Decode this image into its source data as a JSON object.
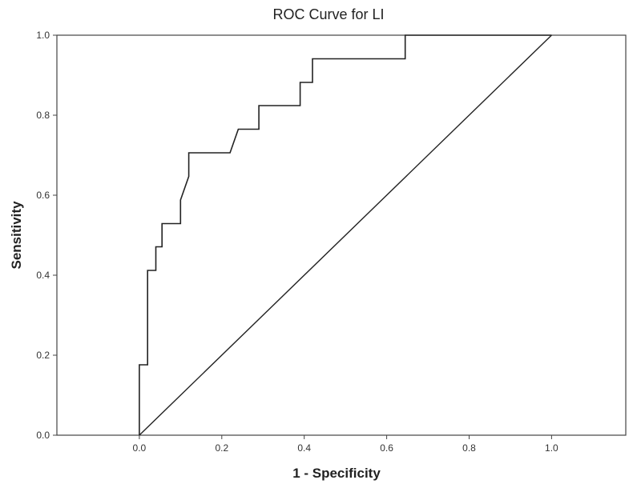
{
  "chart_data": {
    "type": "line",
    "title": "ROC Curve for LI",
    "xlabel": "1 - Specificity",
    "ylabel": "Sensitivity",
    "xlim": [
      -0.2,
      1.18
    ],
    "ylim": [
      0,
      1
    ],
    "x_ticks": [
      "0.0",
      "0.2",
      "0.4",
      "0.6",
      "0.8",
      "1.0"
    ],
    "x_tick_values": [
      0,
      0.2,
      0.4,
      0.6,
      0.8,
      1.0
    ],
    "y_ticks": [
      "0.0",
      "0.2",
      "0.4",
      "0.6",
      "0.8",
      "1.0"
    ],
    "y_tick_values": [
      0,
      0.2,
      0.4,
      0.6,
      0.8,
      1.0
    ],
    "grid": false,
    "series": [
      {
        "kind": "roc",
        "x": [
          0,
          0,
          0.02,
          0.02,
          0.04,
          0.04,
          0.055,
          0.055,
          0.1,
          0.1,
          0.12,
          0.12,
          0.22,
          0.24,
          0.29,
          0.29,
          0.39,
          0.39,
          0.42,
          0.42,
          0.645,
          0.645,
          1.0
        ],
        "y": [
          0,
          0.176,
          0.176,
          0.412,
          0.412,
          0.471,
          0.471,
          0.529,
          0.529,
          0.588,
          0.647,
          0.706,
          0.706,
          0.765,
          0.765,
          0.824,
          0.824,
          0.882,
          0.882,
          0.941,
          0.941,
          1.0,
          1.0
        ]
      },
      {
        "kind": "reference",
        "x": [
          0,
          1
        ],
        "y": [
          0,
          1
        ]
      }
    ]
  }
}
